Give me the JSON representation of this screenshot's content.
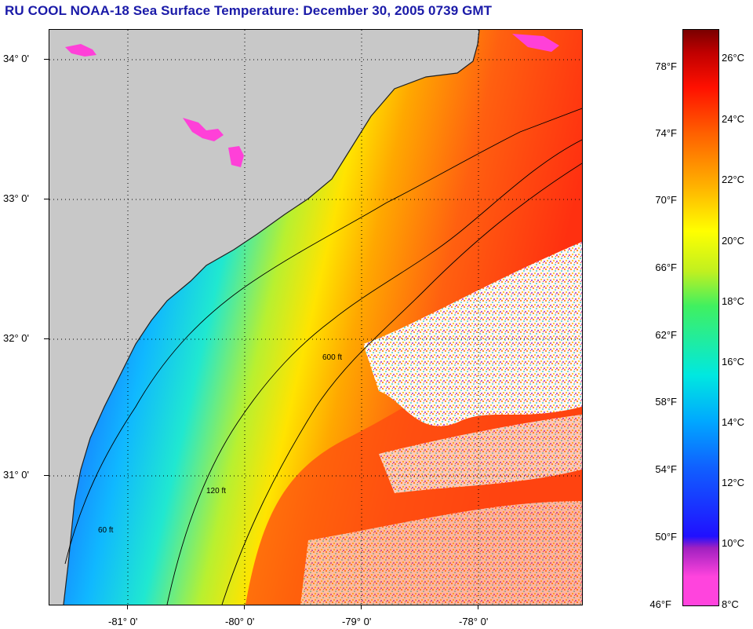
{
  "title": "RU COOL  NOAA-18  Sea Surface Temperature:  December 30, 2005 0739 GMT",
  "lat_labels": [
    "34° 0'",
    "33° 0'",
    "32° 0'",
    "31° 0'"
  ],
  "lon_labels": [
    "-81° 0'",
    "-80° 0'",
    "-79° 0'",
    "-78° 0'"
  ],
  "contour_labels": [
    "60 ft",
    "120 ft",
    "600 ft"
  ],
  "colorbar": {
    "fahrenheit": [
      "78°F",
      "74°F",
      "70°F",
      "66°F",
      "62°F",
      "58°F",
      "54°F",
      "50°F",
      "46°F"
    ],
    "celsius": [
      "26°C",
      "24°C",
      "22°C",
      "20°C",
      "18°C",
      "16°C",
      "14°C",
      "12°C",
      "10°C",
      "8°C"
    ],
    "colors": [
      "#ff44dd",
      "#a020c0",
      "#2010ff",
      "#00a8ff",
      "#00e8e0",
      "#40f060",
      "#ffff00",
      "#ffb000",
      "#ff6000",
      "#ff1000",
      "#7a0000"
    ]
  }
}
